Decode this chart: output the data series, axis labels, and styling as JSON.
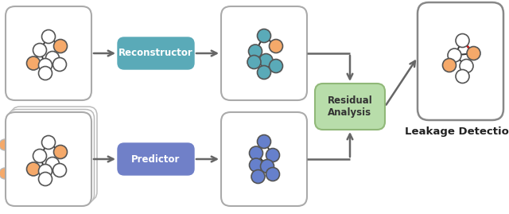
{
  "bg_color": "#ffffff",
  "node_white": "#ffffff",
  "node_orange": "#F5A96A",
  "node_blue_teal": "#5AAAB8",
  "node_blue": "#6680CC",
  "edge_color": "#333333",
  "box_border": "#aaaaaa",
  "reconstructor_color": "#5AAAB8",
  "predictor_color": "#7080C8",
  "residual_color": "#B8DDAA",
  "residual_border": "#90B878",
  "arrow_color": "#666666",
  "red_edge": "#CC1111",
  "title": "Leakage Detection",
  "reconstructor_label": "Reconstructor",
  "predictor_label": "Predictor",
  "residual_label": "Residual\nAnalysis"
}
